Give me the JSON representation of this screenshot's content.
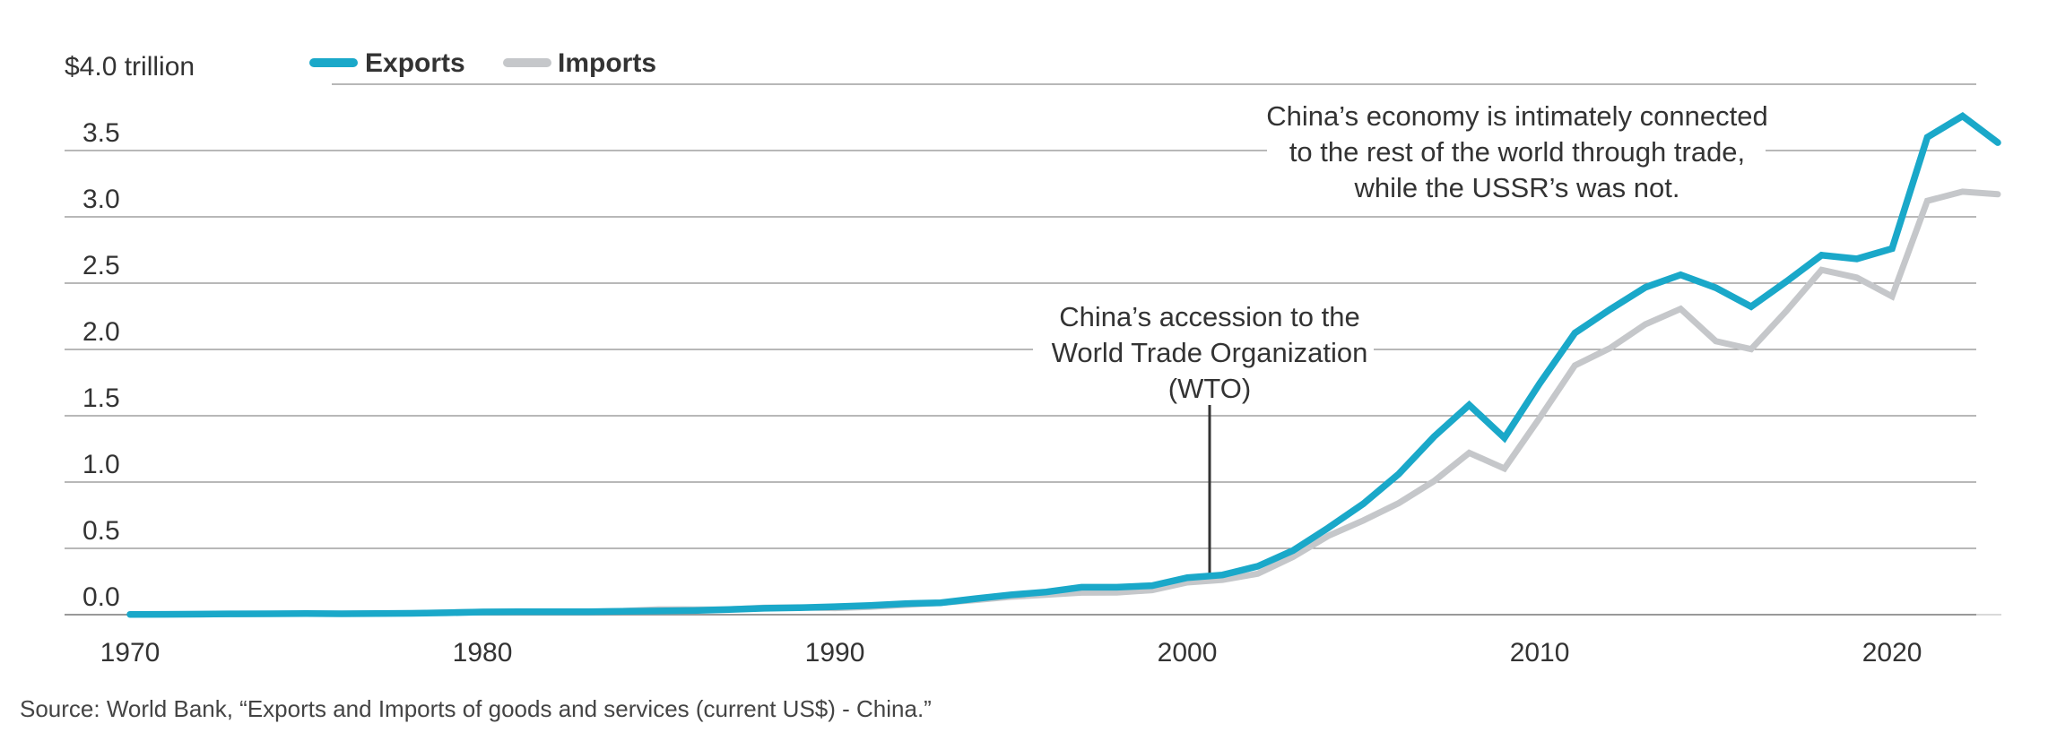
{
  "chart_data": {
    "type": "line",
    "y_unit_label": "$4.0 trillion",
    "ylim": [
      0,
      4
    ],
    "xlim": [
      1970,
      2023
    ],
    "y_ticks": [
      "0.0",
      "0.5",
      "1.0",
      "1.5",
      "2.0",
      "2.5",
      "3.0",
      "3.5"
    ],
    "x_ticks": [
      "1970",
      "1980",
      "1990",
      "2000",
      "2010",
      "2020"
    ],
    "grid": true,
    "legend_position": "top-left",
    "x": [
      1970,
      1971,
      1972,
      1973,
      1974,
      1975,
      1976,
      1977,
      1978,
      1979,
      1980,
      1981,
      1982,
      1983,
      1984,
      1985,
      1986,
      1987,
      1988,
      1989,
      1990,
      1991,
      1992,
      1993,
      1994,
      1995,
      1996,
      1997,
      1998,
      1999,
      2000,
      2001,
      2002,
      2003,
      2004,
      2005,
      2006,
      2007,
      2008,
      2009,
      2010,
      2011,
      2012,
      2013,
      2014,
      2015,
      2016,
      2017,
      2018,
      2019,
      2020,
      2021,
      2022,
      2023
    ],
    "series": [
      {
        "name": "Exports",
        "color": "#1aa8c9",
        "values": [
          0.002,
          0.003,
          0.004,
          0.006,
          0.007,
          0.008,
          0.007,
          0.008,
          0.01,
          0.014,
          0.02,
          0.022,
          0.022,
          0.022,
          0.026,
          0.028,
          0.031,
          0.039,
          0.048,
          0.053,
          0.06,
          0.069,
          0.083,
          0.09,
          0.121,
          0.149,
          0.171,
          0.207,
          0.207,
          0.219,
          0.279,
          0.299,
          0.365,
          0.484,
          0.655,
          0.837,
          1.061,
          1.342,
          1.581,
          1.333,
          1.743,
          2.124,
          2.302,
          2.468,
          2.563,
          2.465,
          2.323,
          2.512,
          2.711,
          2.683,
          2.76,
          3.6,
          3.76,
          3.56
        ]
      },
      {
        "name": "Imports",
        "color": "#c5c7ca",
        "values": [
          0.002,
          0.003,
          0.003,
          0.005,
          0.007,
          0.007,
          0.007,
          0.008,
          0.011,
          0.016,
          0.021,
          0.022,
          0.02,
          0.022,
          0.028,
          0.04,
          0.039,
          0.04,
          0.053,
          0.055,
          0.05,
          0.059,
          0.074,
          0.089,
          0.111,
          0.135,
          0.15,
          0.166,
          0.167,
          0.185,
          0.243,
          0.262,
          0.309,
          0.436,
          0.594,
          0.711,
          0.841,
          1.007,
          1.22,
          1.102,
          1.484,
          1.88,
          2.01,
          2.19,
          2.306,
          2.062,
          2.002,
          2.29,
          2.6,
          2.542,
          2.4,
          3.12,
          3.19,
          3.17
        ]
      }
    ],
    "annotations": {
      "wto_lines": [
        "China’s accession to the",
        "World Trade Organization",
        "(WTO)"
      ],
      "trade_lines": [
        "China’s economy is intimately connected",
        "to the rest of the world through trade,",
        "while the USSR’s was not."
      ]
    }
  },
  "source": "Source: World Bank, “Exports and Imports of goods and services (current US$) - China.”"
}
